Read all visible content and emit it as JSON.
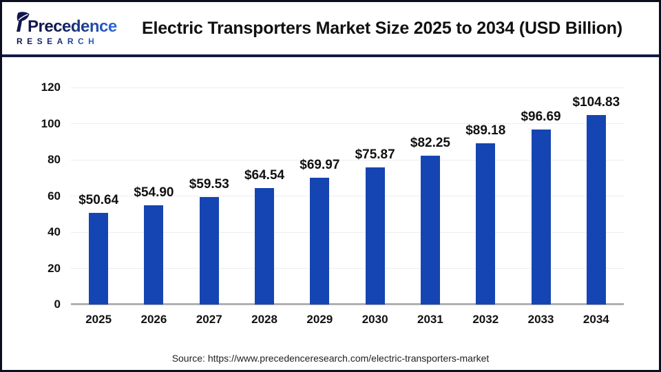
{
  "header": {
    "logo": {
      "brand": "Precedence",
      "sub": "RESEARCH"
    },
    "title": "Electric Transporters Market Size 2025 to 2034 (USD Billion)"
  },
  "chart_data": {
    "type": "bar",
    "title": "Electric Transporters Market Size 2025 to 2034 (USD Billion)",
    "categories": [
      "2025",
      "2026",
      "2027",
      "2028",
      "2029",
      "2030",
      "2031",
      "2032",
      "2033",
      "2034"
    ],
    "values": [
      50.64,
      54.9,
      59.53,
      64.54,
      69.97,
      75.87,
      82.25,
      89.18,
      96.69,
      104.83
    ],
    "value_labels": [
      "$50.64",
      "$54.90",
      "$59.53",
      "$64.54",
      "$69.97",
      "$75.87",
      "$82.25",
      "$89.18",
      "$96.69",
      "$104.83"
    ],
    "value_prefix": "$",
    "xlabel": "",
    "ylabel": "",
    "ylim": [
      0,
      120
    ],
    "yticks": [
      0,
      20,
      40,
      60,
      80,
      100,
      120
    ],
    "grid": true,
    "legend": "none",
    "bar_color": "#1545b2"
  },
  "footer": {
    "source": "Source: https://www.precedenceresearch.com/electric-transporters-market"
  },
  "colors": {
    "bar": "#1545b2",
    "divider": "#131a45",
    "frame_border": "#0b0e1f",
    "axis_line": "#b0b0b0",
    "gridline": "#ededed",
    "logo_dark": "#12164e",
    "logo_blue": "#2e6bdb",
    "title_text": "#111111"
  }
}
